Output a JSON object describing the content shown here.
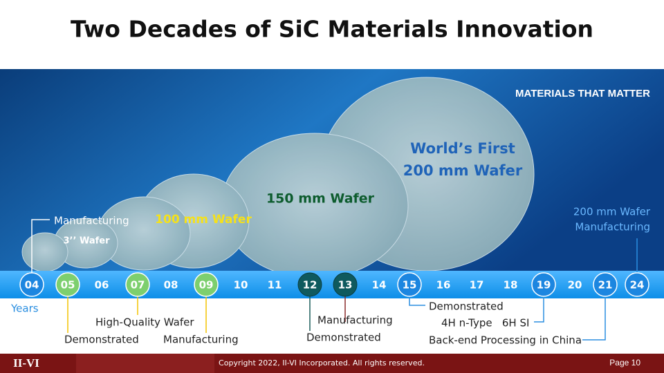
{
  "title": "Two Decades of SiC Materials Innovation",
  "banner": {
    "brand": "MATERIALS THAT MATTER"
  },
  "wafers": {
    "small": "3’’  Wafer",
    "mid": "100 mm Wafer",
    "large": "150 mm Wafer",
    "first": [
      "World’s First",
      "200 mm Wafer"
    ]
  },
  "timeline": {
    "years": [
      "04",
      "05",
      "06",
      "07",
      "08",
      "09",
      "10",
      "11",
      "12",
      "13",
      "14",
      "15",
      "16",
      "17",
      "18",
      "19",
      "20",
      "21",
      "24"
    ],
    "axis_label": "Years"
  },
  "annotations": {
    "manufacturing_04": "Manufacturing",
    "manufacturing_24": [
      "200 mm Wafer",
      "Manufacturing"
    ],
    "high_quality": "High-Quality Wafer",
    "demonstrated_05": "Demonstrated",
    "manufacturing_09": "Manufacturing",
    "manufacturing_13": "Manufacturing",
    "demonstrated_12": "Demonstrated",
    "demonstrated_15": "Demonstrated",
    "types_19": "4H n-Type   6H SI",
    "backend_21": "Back-end Processing in China"
  },
  "footer": {
    "logo": "II-VI",
    "copyright": "Copyright 2022, II-VI Incorporated. All rights reserved.",
    "page": "Page 10"
  }
}
